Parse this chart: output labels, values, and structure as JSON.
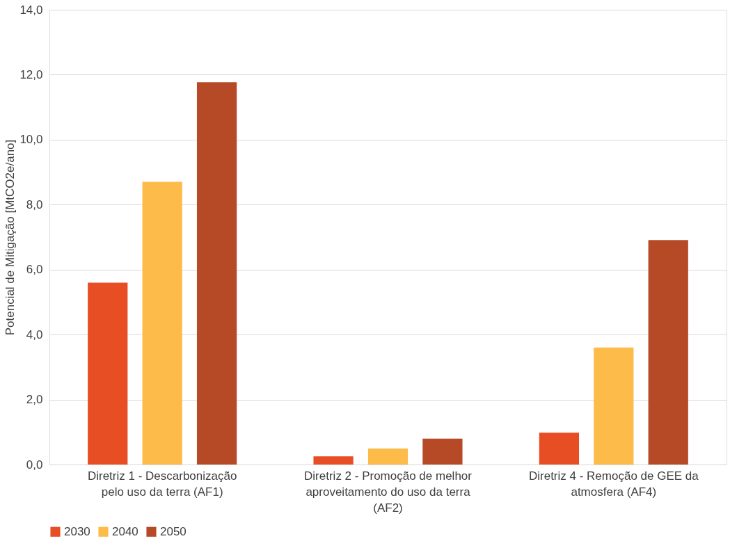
{
  "chart_data": {
    "type": "bar",
    "ylabel": "Potencial de Mitigação [MtCO2e/ano]",
    "categories": [
      "Diretriz 1 - Descarbonização pelo uso da terra  (AF1)",
      "Diretriz 2 - Promoção de melhor aproveitamento do uso da terra (AF2)",
      "Diretriz 4 - Remoção de GEE da atmosfera (AF4)"
    ],
    "series": [
      {
        "name": "2030",
        "color": "#e84e24",
        "values": [
          5.6,
          0.25,
          0.98
        ]
      },
      {
        "name": "2040",
        "color": "#fdbb4a",
        "values": [
          8.7,
          0.49,
          3.6
        ]
      },
      {
        "name": "2050",
        "color": "#b64a26",
        "values": [
          11.77,
          0.8,
          6.91
        ]
      }
    ],
    "ylim": [
      0,
      14
    ],
    "yticks": [
      {
        "value": 0,
        "label": "0,0"
      },
      {
        "value": 2,
        "label": "2,0"
      },
      {
        "value": 4,
        "label": "4,0"
      },
      {
        "value": 6,
        "label": "6,0"
      },
      {
        "value": 8,
        "label": "8,0"
      },
      {
        "value": 10,
        "label": "10,0"
      },
      {
        "value": 12,
        "label": "12,0"
      },
      {
        "value": 14,
        "label": "14,0"
      }
    ],
    "grid": "y",
    "legend": "bottom"
  }
}
